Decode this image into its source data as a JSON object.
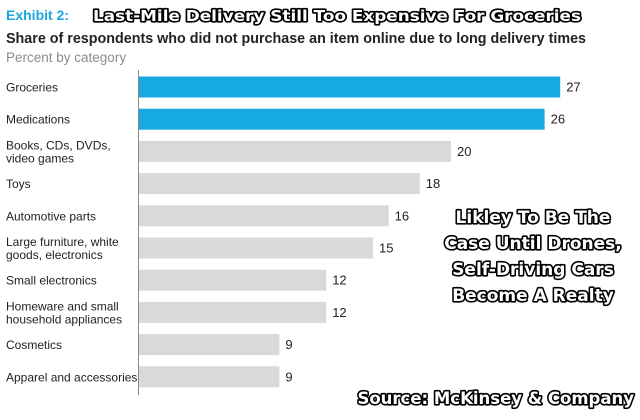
{
  "header": {
    "exhibit": "Exhibit 2:",
    "headline": "Last-Mile Delivery Still Too Expensive For Groceries",
    "subtitle": "Share of respondents who did not purchase an item online due to long delivery times",
    "unit": "Percent by category"
  },
  "annotation": {
    "lines": [
      "Likley To Be The",
      "Case Until Drones,",
      "Self-Driving Cars",
      "Become A Realty"
    ]
  },
  "source": "Source: McKinsey & Company",
  "colors": {
    "highlight": "#17a9e1",
    "bar": "#d9d9d9",
    "exhibit": "#1ca6df",
    "text": "#222222",
    "unit_text": "#8c8c8c"
  },
  "chart_data": {
    "type": "bar",
    "orientation": "horizontal",
    "title": "Last-Mile Delivery Still Too Expensive For Groceries",
    "subtitle": "Share of respondents who did not purchase an item online due to long delivery times",
    "ylabel": "Percent by category",
    "xlim": [
      0,
      27
    ],
    "grid": false,
    "categories": [
      [
        "Groceries"
      ],
      [
        "Medications"
      ],
      [
        "Books, CDs, DVDs,",
        "video games"
      ],
      [
        "Toys"
      ],
      [
        "Automotive parts"
      ],
      [
        "Large furniture, white",
        "goods, electronics"
      ],
      [
        "Small electronics"
      ],
      [
        "Homeware and small",
        "household appliances"
      ],
      [
        "Cosmetics"
      ],
      [
        "Apparel and accessories"
      ]
    ],
    "values": [
      27,
      26,
      20,
      18,
      16,
      15,
      12,
      12,
      9,
      9
    ],
    "highlighted": [
      0,
      1
    ]
  }
}
